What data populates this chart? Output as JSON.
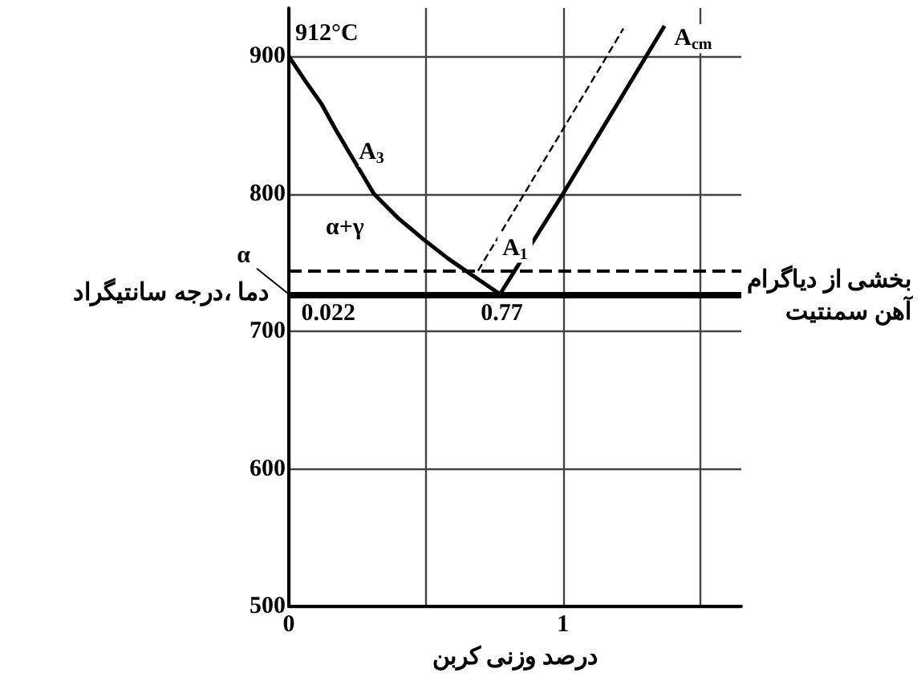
{
  "chart_data": {
    "type": "line",
    "xlabel": "درصد وزنی کربن",
    "ylabel": "دما ،درجه سانتیگراد",
    "xlim": [
      0,
      1.65
    ],
    "ylim": [
      500,
      935
    ],
    "xticks": [
      0,
      {
        "value": 0.5,
        "label": null
      },
      1,
      {
        "value": 1.5,
        "label": null
      }
    ],
    "yticks": [
      500,
      600,
      700,
      800,
      900
    ],
    "grid": true,
    "marker": "none",
    "series": [
      {
        "color": "#000000",
        "line_style": "solid",
        "x": [
          0,
          0.06,
          0.12,
          0.17,
          0.22,
          0.31,
          0.4,
          0.49,
          0.58,
          0.66,
          0.77
        ],
        "values": [
          900,
          882,
          865,
          847,
          830,
          800,
          782,
          767,
          753,
          742,
          727
        ]
      },
      {
        "color": "#000000",
        "line_style": "solid",
        "x": [
          0.77,
          1,
          1.37
        ],
        "values": [
          727,
          800,
          922
        ]
      },
      {
        "color": "#000000",
        "line_style": "dashed",
        "x": [
          0.69,
          1.22
        ],
        "values": [
          744,
          920
        ]
      }
    ],
    "ref_lines": [
      {
        "axis": "y",
        "value": 727,
        "label": null,
        "line_style": "solid",
        "color": "#000000"
      },
      {
        "axis": "y",
        "value": 744,
        "label": "A$_{1}$",
        "line_style": "dashed",
        "color": "#000000"
      }
    ],
    "annotations": [
      {
        "text": "912°C",
        "x": 0,
        "y": 900
      },
      {
        "text": "A$_{3}$",
        "x": 0.22,
        "y": 830
      },
      "α+γ",
      {
        "text": "α",
        "x": 0,
        "y": 727
      },
      {
        "text": "0.022",
        "x": 0.022,
        "y": 727
      },
      {
        "text": "0.77",
        "x": 0.77,
        "y": 727
      },
      {
        "text": "A$_{cm}$",
        "x": 1.37,
        "y": 922
      },
      "بخشی از دیاگرام\nآهن سمنتیت"
    ]
  }
}
